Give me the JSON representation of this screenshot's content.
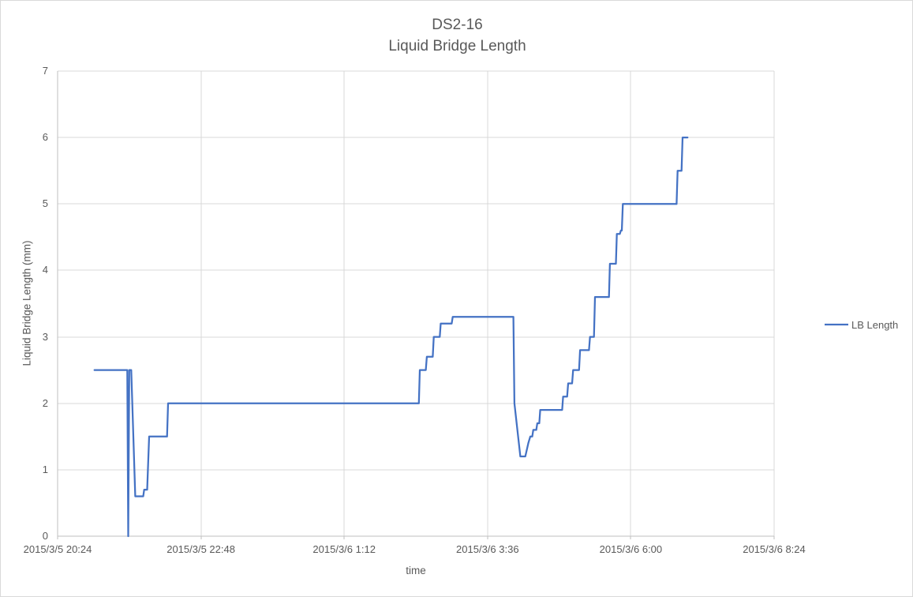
{
  "chart_data": {
    "type": "line",
    "title": "DS2-16",
    "subtitle": "Liquid Bridge Length",
    "xlabel": "time",
    "ylabel": "Liquid Bridge Length (mm)",
    "legend_entries": [
      "LB Length"
    ],
    "legend_position": "right",
    "grid": true,
    "colors": {
      "series": "#4472C4",
      "gridline": "#D9D9D9",
      "axis_line": "#BFBFBF",
      "text": "#595959"
    },
    "x_axis": {
      "type": "time",
      "tick_labels": [
        "2015/3/5 20:24",
        "2015/3/5 22:48",
        "2015/3/6 1:12",
        "2015/3/6 3:36",
        "2015/3/6 6:00",
        "2015/3/6 8:24"
      ],
      "tick_offsets_min": [
        0,
        144,
        288,
        432,
        576,
        720
      ],
      "x_unit": "minutes after 2015/3/5 20:24"
    },
    "y_axis": {
      "min": 0,
      "max": 7,
      "tick_step": 1,
      "tick_labels": [
        "0",
        "1",
        "2",
        "3",
        "4",
        "5",
        "6",
        "7"
      ]
    },
    "series": [
      {
        "name": "LB Length",
        "color": "#4472C4",
        "points": [
          [
            37,
            2.5
          ],
          [
            70,
            2.5
          ],
          [
            71,
            0
          ],
          [
            72,
            2.5
          ],
          [
            74,
            2.5
          ],
          [
            78,
            0.6
          ],
          [
            86,
            0.6
          ],
          [
            87,
            0.7
          ],
          [
            90,
            0.7
          ],
          [
            92,
            1.5
          ],
          [
            110,
            1.5
          ],
          [
            111,
            2.0
          ],
          [
            363,
            2.0
          ],
          [
            364,
            2.5
          ],
          [
            370,
            2.5
          ],
          [
            371,
            2.7
          ],
          [
            377,
            2.7
          ],
          [
            378,
            3.0
          ],
          [
            384,
            3.0
          ],
          [
            385,
            3.2
          ],
          [
            396,
            3.2
          ],
          [
            397,
            3.3
          ],
          [
            458,
            3.3
          ],
          [
            459,
            2.0
          ],
          [
            465,
            1.2
          ],
          [
            470,
            1.2
          ],
          [
            473,
            1.4
          ],
          [
            475,
            1.5
          ],
          [
            477,
            1.5
          ],
          [
            478,
            1.6
          ],
          [
            481,
            1.6
          ],
          [
            482,
            1.7
          ],
          [
            484,
            1.7
          ],
          [
            485,
            1.9
          ],
          [
            507,
            1.9
          ],
          [
            508,
            2.1
          ],
          [
            512,
            2.1
          ],
          [
            513,
            2.3
          ],
          [
            517,
            2.3
          ],
          [
            518,
            2.5
          ],
          [
            524,
            2.5
          ],
          [
            525,
            2.8
          ],
          [
            534,
            2.8
          ],
          [
            535,
            3.0
          ],
          [
            539,
            3.0
          ],
          [
            540,
            3.6
          ],
          [
            554,
            3.6
          ],
          [
            555,
            4.1
          ],
          [
            561,
            4.1
          ],
          [
            562,
            4.55
          ],
          [
            565,
            4.55
          ],
          [
            566,
            4.6
          ],
          [
            567,
            4.6
          ],
          [
            568,
            5.0
          ],
          [
            622,
            5.0
          ],
          [
            623,
            5.5
          ],
          [
            627,
            5.5
          ],
          [
            628,
            6.0
          ],
          [
            633,
            6.0
          ]
        ]
      }
    ]
  }
}
